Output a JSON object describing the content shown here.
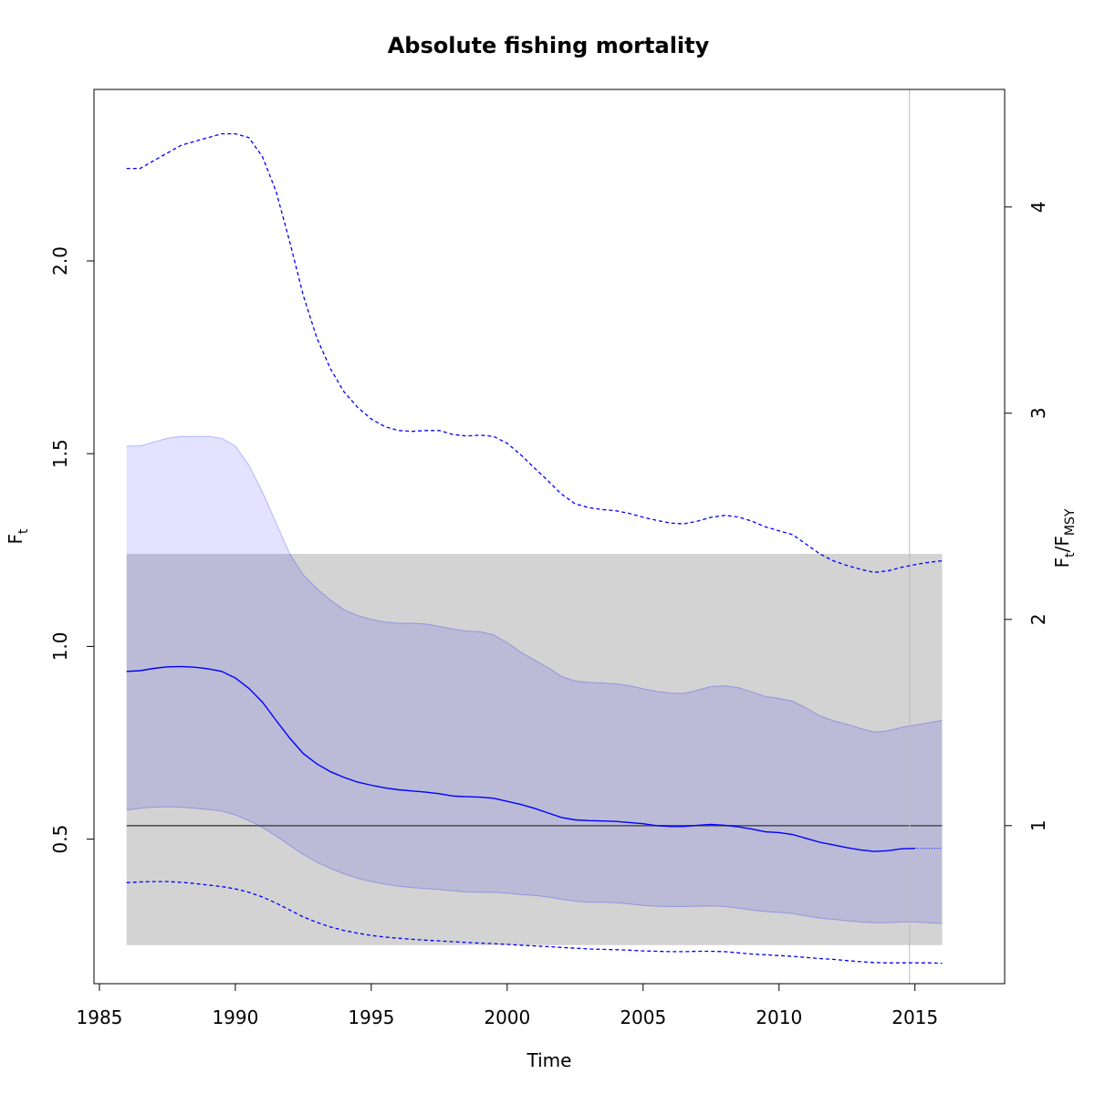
{
  "chart_data": {
    "type": "line",
    "title": "Absolute fishing mortality",
    "xlabel": "Time",
    "ylabel_left": {
      "base": "F",
      "sub": "t"
    },
    "ylabel_right": {
      "base": "F",
      "sub": "t",
      "sep": "/",
      "base2": "F",
      "sub2": "MSY"
    },
    "xlim": [
      1984.8,
      2018.3
    ],
    "ylim_left": [
      0.125,
      2.445
    ],
    "x_ticks": [
      1985,
      1990,
      1995,
      2000,
      2005,
      2010,
      2015
    ],
    "y_ticks_left": [
      0.5,
      1.0,
      1.5,
      2.0
    ],
    "y_ticks_left_labels": [
      "0.5",
      "1.0",
      "1.5",
      "2.0"
    ],
    "fmsy": 0.535,
    "y_ticks_right": [
      1,
      2,
      3,
      4
    ],
    "y_ticks_right_labels": [
      "1",
      "2",
      "3",
      "4"
    ],
    "vline_x": 2014.8,
    "fmsy_band": {
      "x0": 1986.0,
      "x1": 2016.0,
      "ymin": 0.225,
      "ymax": 1.24
    },
    "x": [
      1986.0,
      1986.5,
      1987.0,
      1987.5,
      1988.0,
      1988.5,
      1989.0,
      1989.5,
      1990.0,
      1990.5,
      1991.0,
      1991.5,
      1992.0,
      1992.5,
      1993.0,
      1993.5,
      1994.0,
      1994.5,
      1995.0,
      1995.5,
      1996.0,
      1996.5,
      1997.0,
      1997.5,
      1998.0,
      1998.5,
      1999.0,
      1999.5,
      2000.0,
      2000.5,
      2001.0,
      2001.5,
      2002.0,
      2002.5,
      2003.0,
      2003.5,
      2004.0,
      2004.5,
      2005.0,
      2005.5,
      2006.0,
      2006.5,
      2007.0,
      2007.5,
      2008.0,
      2008.5,
      2009.0,
      2009.5,
      2010.0,
      2010.5,
      2011.0,
      2011.5,
      2012.0,
      2012.5,
      2013.0,
      2013.5,
      2014.0,
      2014.5,
      2015.0,
      2015.5,
      2016.0
    ],
    "series": [
      {
        "role": "estimate",
        "values": [
          0.935,
          0.937,
          0.943,
          0.947,
          0.948,
          0.946,
          0.942,
          0.935,
          0.918,
          0.891,
          0.855,
          0.808,
          0.762,
          0.722,
          0.695,
          0.675,
          0.66,
          0.648,
          0.64,
          0.633,
          0.628,
          0.625,
          0.622,
          0.618,
          0.612,
          0.61,
          0.609,
          0.606,
          0.598,
          0.59,
          0.58,
          0.568,
          0.556,
          0.55,
          0.548,
          0.547,
          0.546,
          0.543,
          0.54,
          0.535,
          0.533,
          0.533,
          0.536,
          0.538,
          0.536,
          0.532,
          0.526,
          0.519,
          0.517,
          0.512,
          0.502,
          0.492,
          0.485,
          0.478,
          0.472,
          0.468,
          0.47,
          0.475,
          0.476,
          0.476,
          0.476
        ],
        "forecast_from": 2015.0,
        "color": "#0000ff"
      },
      {
        "role": "ci_lower",
        "values": [
          0.575,
          0.58,
          0.583,
          0.584,
          0.583,
          0.58,
          0.577,
          0.573,
          0.563,
          0.548,
          0.53,
          0.508,
          0.484,
          0.46,
          0.44,
          0.424,
          0.41,
          0.398,
          0.39,
          0.383,
          0.378,
          0.374,
          0.372,
          0.369,
          0.366,
          0.363,
          0.362,
          0.362,
          0.36,
          0.356,
          0.354,
          0.35,
          0.344,
          0.339,
          0.336,
          0.336,
          0.335,
          0.332,
          0.328,
          0.326,
          0.325,
          0.325,
          0.326,
          0.327,
          0.325,
          0.321,
          0.316,
          0.312,
          0.31,
          0.307,
          0.301,
          0.295,
          0.292,
          0.288,
          0.285,
          0.283,
          0.283,
          0.285,
          0.285,
          0.283,
          0.281
        ],
        "color": "#0000ff"
      },
      {
        "role": "ci_upper",
        "values": [
          1.52,
          1.52,
          1.53,
          1.54,
          1.545,
          1.545,
          1.545,
          1.54,
          1.52,
          1.47,
          1.4,
          1.32,
          1.24,
          1.185,
          1.15,
          1.12,
          1.095,
          1.08,
          1.07,
          1.063,
          1.06,
          1.06,
          1.058,
          1.052,
          1.045,
          1.04,
          1.038,
          1.03,
          1.01,
          0.985,
          0.965,
          0.945,
          0.922,
          0.91,
          0.907,
          0.905,
          0.903,
          0.898,
          0.89,
          0.883,
          0.879,
          0.878,
          0.886,
          0.896,
          0.898,
          0.893,
          0.882,
          0.87,
          0.865,
          0.858,
          0.84,
          0.82,
          0.807,
          0.798,
          0.787,
          0.778,
          0.781,
          0.79,
          0.796,
          0.802,
          0.808
        ],
        "color": "#0000ff"
      },
      {
        "role": "pi_lower",
        "style": "dashed",
        "values": [
          0.387,
          0.389,
          0.39,
          0.39,
          0.388,
          0.385,
          0.381,
          0.377,
          0.371,
          0.362,
          0.35,
          0.334,
          0.316,
          0.298,
          0.284,
          0.272,
          0.263,
          0.256,
          0.25,
          0.246,
          0.243,
          0.24,
          0.238,
          0.236,
          0.234,
          0.232,
          0.23,
          0.229,
          0.227,
          0.225,
          0.223,
          0.221,
          0.219,
          0.217,
          0.215,
          0.214,
          0.213,
          0.212,
          0.21,
          0.209,
          0.208,
          0.208,
          0.209,
          0.209,
          0.208,
          0.205,
          0.202,
          0.2,
          0.198,
          0.196,
          0.193,
          0.19,
          0.188,
          0.185,
          0.182,
          0.18,
          0.179,
          0.179,
          0.179,
          0.179,
          0.178
        ],
        "color": "#0000ff"
      },
      {
        "role": "pi_upper",
        "style": "dashed",
        "values": [
          2.24,
          2.24,
          2.26,
          2.28,
          2.3,
          2.31,
          2.32,
          2.33,
          2.33,
          2.32,
          2.27,
          2.18,
          2.05,
          1.91,
          1.8,
          1.72,
          1.66,
          1.62,
          1.59,
          1.57,
          1.56,
          1.558,
          1.56,
          1.56,
          1.55,
          1.546,
          1.548,
          1.545,
          1.527,
          1.497,
          1.463,
          1.43,
          1.395,
          1.37,
          1.36,
          1.355,
          1.352,
          1.345,
          1.335,
          1.327,
          1.32,
          1.318,
          1.325,
          1.335,
          1.34,
          1.336,
          1.325,
          1.31,
          1.3,
          1.29,
          1.265,
          1.24,
          1.222,
          1.21,
          1.2,
          1.192,
          1.196,
          1.205,
          1.212,
          1.218,
          1.222
        ],
        "color": "#0000ff"
      }
    ],
    "colors": {
      "ci_fill": "#0000ff",
      "band_fill": "#d3d3d3",
      "fmsy_line": "#555555",
      "vline": "#bebebe"
    }
  }
}
